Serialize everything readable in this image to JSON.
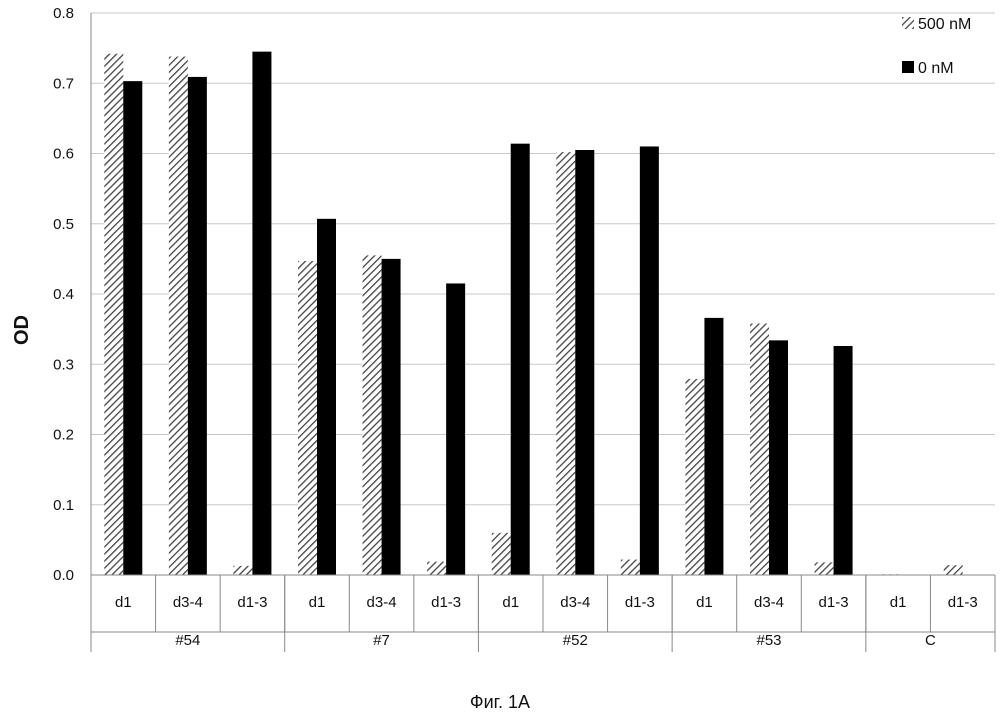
{
  "caption": "Фиг. 1A",
  "chart_data": {
    "type": "bar",
    "ylabel": "OD",
    "ylim": [
      0,
      0.8
    ],
    "yticks": [
      "0.0",
      "0.1",
      "0.2",
      "0.3",
      "0.4",
      "0.5",
      "0.6",
      "0.7",
      "0.8"
    ],
    "grid": true,
    "legend_position": "top-right",
    "groups": [
      {
        "name": "#54",
        "categories": [
          "d1",
          "d3-4",
          "d1-3"
        ]
      },
      {
        "name": "#7",
        "categories": [
          "d1",
          "d3-4",
          "d1-3"
        ]
      },
      {
        "name": "#52",
        "categories": [
          "d1",
          "d3-4",
          "d1-3"
        ]
      },
      {
        "name": "#53",
        "categories": [
          "d1",
          "d3-4",
          "d1-3"
        ]
      },
      {
        "name": "C",
        "categories": [
          "d1",
          "d1-3"
        ]
      }
    ],
    "series": [
      {
        "name": "500 nM",
        "pattern": "hatched",
        "values": [
          0.742,
          0.738,
          0.013,
          0.447,
          0.455,
          0.019,
          0.06,
          0.602,
          0.022,
          0.279,
          0.358,
          0.018,
          0.001,
          0.014
        ]
      },
      {
        "name": "0 nM",
        "pattern": "solid",
        "values": [
          0.703,
          0.709,
          0.745,
          0.507,
          0.45,
          0.415,
          0.614,
          0.605,
          0.61,
          0.366,
          0.334,
          0.326,
          null,
          null
        ]
      }
    ],
    "colors": {
      "solid": "#000000",
      "hatch": "#555555",
      "grid": "#c8c8c8",
      "axis": "#888888"
    }
  }
}
